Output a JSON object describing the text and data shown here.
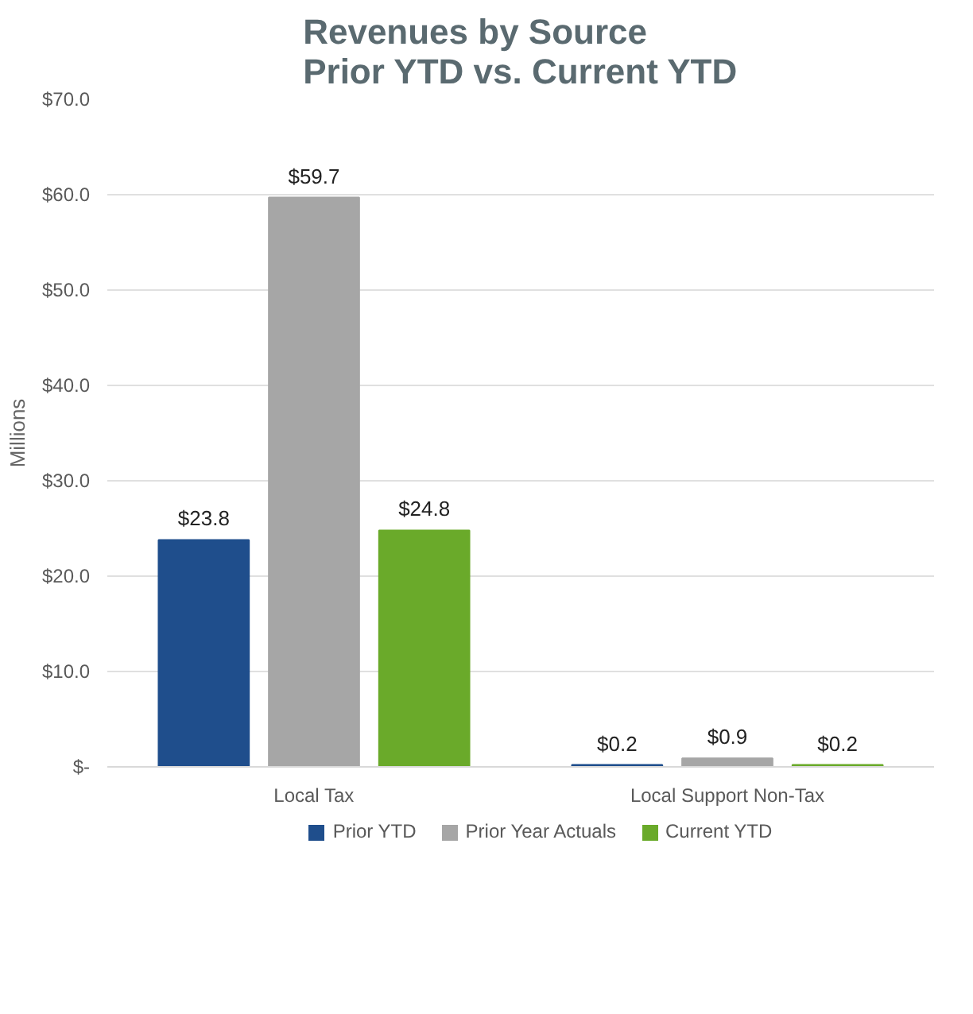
{
  "chart_data": {
    "type": "bar",
    "title": "Revenues by Source\nPrior YTD vs. Current YTD",
    "ylabel": "Millions",
    "categories": [
      "Local Tax",
      "Local Support Non-Tax"
    ],
    "series": [
      {
        "name": "Prior YTD",
        "color": "#1f4e8c",
        "values": [
          23.8,
          0.2
        ],
        "value_labels": [
          "$23.8",
          "$0.2"
        ]
      },
      {
        "name": "Prior Year Actuals",
        "color": "#a6a6a6",
        "values": [
          59.7,
          0.9
        ],
        "value_labels": [
          "$59.7",
          "$0.9"
        ]
      },
      {
        "name": "Current YTD",
        "color": "#6aaa2a",
        "values": [
          24.8,
          0.2
        ],
        "value_labels": [
          "$24.8",
          "$0.2"
        ]
      }
    ],
    "ylim": [
      0,
      70
    ],
    "yticks": [
      {
        "value": 0,
        "label": "$-"
      },
      {
        "value": 10,
        "label": "$10.0"
      },
      {
        "value": 20,
        "label": "$20.0"
      },
      {
        "value": 30,
        "label": "$30.0"
      },
      {
        "value": 40,
        "label": "$40.0"
      },
      {
        "value": 50,
        "label": "$50.0"
      },
      {
        "value": 60,
        "label": "$60.0"
      },
      {
        "value": 70,
        "label": "$70.0"
      }
    ],
    "grid": "y",
    "legend": "bottom"
  }
}
